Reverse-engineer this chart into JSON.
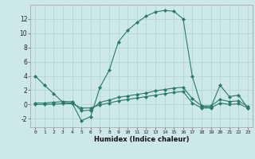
{
  "xlabel": "Humidex (Indice chaleur)",
  "background_color": "#cce8e8",
  "grid_color": "#b8d8d8",
  "line_color": "#2a7a6a",
  "x_main": [
    0,
    1,
    2,
    3,
    4,
    5,
    6,
    7,
    8,
    9,
    10,
    11,
    12,
    13,
    14,
    15,
    16,
    17,
    18,
    19,
    20,
    21,
    22,
    23
  ],
  "y_main": [
    4.0,
    2.7,
    1.5,
    0.3,
    0.2,
    -2.3,
    -1.7,
    2.4,
    4.8,
    8.8,
    10.4,
    11.5,
    12.4,
    13.0,
    13.2,
    13.1,
    12.0,
    3.9,
    -0.3,
    -0.4,
    2.7,
    1.1,
    1.3,
    -0.5
  ],
  "x_line2": [
    0,
    1,
    2,
    3,
    4,
    5,
    6,
    7,
    8,
    9,
    10,
    11,
    12,
    13,
    14,
    15,
    16,
    17,
    18,
    19,
    20,
    21,
    22,
    23
  ],
  "y_line2": [
    0.2,
    0.2,
    0.3,
    0.4,
    0.4,
    -0.9,
    -0.8,
    0.3,
    0.6,
    1.0,
    1.2,
    1.4,
    1.6,
    1.9,
    2.1,
    2.3,
    2.4,
    0.8,
    -0.2,
    -0.2,
    0.7,
    0.4,
    0.5,
    -0.3
  ],
  "x_line3": [
    0,
    1,
    2,
    3,
    4,
    5,
    6,
    7,
    8,
    9,
    10,
    11,
    12,
    13,
    14,
    15,
    16,
    17,
    18,
    19,
    20,
    21,
    22,
    23
  ],
  "y_line3": [
    0.0,
    0.0,
    0.05,
    0.1,
    0.1,
    -0.5,
    -0.5,
    -0.05,
    0.2,
    0.5,
    0.7,
    0.9,
    1.1,
    1.3,
    1.5,
    1.7,
    1.8,
    0.2,
    -0.5,
    -0.5,
    0.2,
    0.0,
    0.1,
    -0.5
  ],
  "ylim": [
    -3.2,
    14.0
  ],
  "xlim": [
    -0.5,
    23.5
  ],
  "yticks": [
    -2,
    0,
    2,
    4,
    6,
    8,
    10,
    12
  ],
  "xticks": [
    0,
    1,
    2,
    3,
    4,
    5,
    6,
    7,
    8,
    9,
    10,
    11,
    12,
    13,
    14,
    15,
    16,
    17,
    18,
    19,
    20,
    21,
    22,
    23
  ]
}
